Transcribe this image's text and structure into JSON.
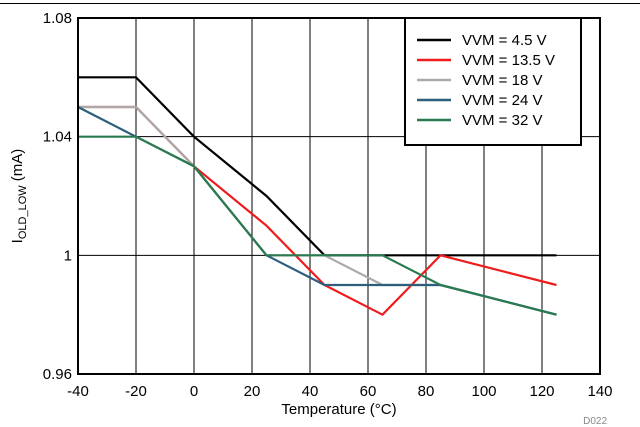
{
  "chart_data": {
    "type": "line",
    "title": "",
    "xlabel": "Temperature (°C)",
    "ylabel": "I",
    "ylabel_sub": "OLD_LOW",
    "ylabel_suffix": " (mA)",
    "xlim": [
      -40,
      140
    ],
    "ylim": [
      0.96,
      1.08
    ],
    "x_ticks": [
      -40,
      -20,
      0,
      20,
      40,
      60,
      80,
      100,
      120,
      140
    ],
    "x_tick_labels": [
      "-40",
      "-20",
      "0",
      "20",
      "40",
      "60",
      "80",
      "100",
      "120",
      "140"
    ],
    "y_ticks": [
      0.96,
      1,
      1.04,
      1.08
    ],
    "y_tick_labels": [
      "0.96",
      "1",
      "1.04",
      "1.08"
    ],
    "grid": true,
    "legend_position": "top-right",
    "series": [
      {
        "name": "VVM = 4.5 V",
        "color": "#000000",
        "x": [
          -40,
          -20,
          0,
          25,
          45,
          65,
          85,
          125
        ],
        "y": [
          1.06,
          1.06,
          1.04,
          1.02,
          1.0,
          1.0,
          1.0,
          1.0
        ]
      },
      {
        "name": "VVM = 13.5 V",
        "color": "#ee1c1c",
        "x": [
          -40,
          -20,
          0,
          25,
          45,
          65,
          85,
          125
        ],
        "y": [
          1.05,
          1.05,
          1.03,
          1.01,
          0.99,
          0.98,
          1.0,
          0.99
        ]
      },
      {
        "name": "VVM = 18 V",
        "color": "#aaaaaa",
        "x": [
          -40,
          -20,
          0,
          25,
          45,
          65,
          85,
          125
        ],
        "y": [
          1.05,
          1.05,
          1.03,
          1.0,
          1.0,
          0.99,
          0.99,
          0.98
        ]
      },
      {
        "name": "VVM = 24 V",
        "color": "#2d5f7c",
        "x": [
          -40,
          -20,
          0,
          25,
          45,
          65,
          85,
          125
        ],
        "y": [
          1.05,
          1.04,
          1.03,
          1.0,
          0.99,
          0.99,
          0.99,
          0.98
        ]
      },
      {
        "name": "VVM = 32 V",
        "color": "#2a7a4f",
        "x": [
          -40,
          -20,
          0,
          25,
          45,
          65,
          85,
          125
        ],
        "y": [
          1.04,
          1.04,
          1.03,
          1.0,
          1.0,
          1.0,
          0.99,
          0.98
        ]
      }
    ],
    "figure_id": "D022"
  }
}
